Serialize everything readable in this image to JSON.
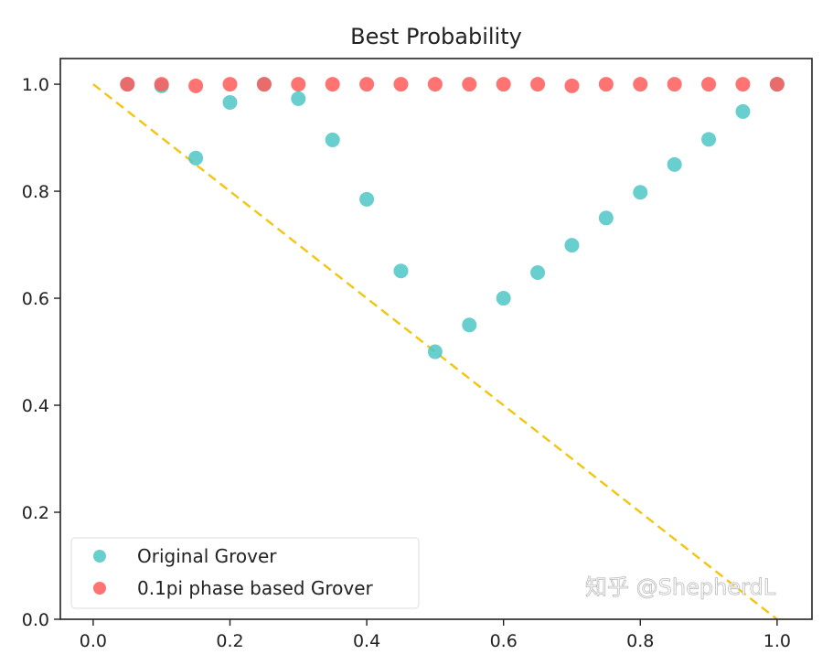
{
  "chart_data": {
    "type": "scatter",
    "title": "Best Probability",
    "xlabel": "",
    "ylabel": "",
    "xlim": [
      -0.048,
      1.051
    ],
    "ylim": [
      0.0,
      1.048
    ],
    "xticks": [
      "0.0",
      "0.2",
      "0.4",
      "0.6",
      "0.8",
      "1.0"
    ],
    "yticks": [
      "0.0",
      "0.2",
      "0.4",
      "0.6",
      "0.8",
      "1.0"
    ],
    "grid": false,
    "legend_placement": "lower-left",
    "series": [
      {
        "name": "Original Grover",
        "color": "#4ec5c5",
        "x": [
          0.05,
          0.1,
          0.15,
          0.2,
          0.25,
          0.3,
          0.35,
          0.4,
          0.45,
          0.5,
          0.55,
          0.6,
          0.65,
          0.7,
          0.75,
          0.8,
          0.85,
          0.9,
          0.95,
          1.0
        ],
        "y": [
          1.0,
          0.997,
          0.862,
          0.966,
          1.0,
          0.973,
          0.896,
          0.785,
          0.651,
          0.5,
          0.55,
          0.6,
          0.648,
          0.699,
          0.75,
          0.798,
          0.85,
          0.897,
          0.949,
          1.0
        ]
      },
      {
        "name": "0.1pi phase based Grover",
        "color": "#ff5a5a",
        "x": [
          0.05,
          0.1,
          0.15,
          0.2,
          0.25,
          0.3,
          0.35,
          0.4,
          0.45,
          0.5,
          0.55,
          0.6,
          0.65,
          0.7,
          0.75,
          0.8,
          0.85,
          0.9,
          0.95,
          1.0
        ],
        "y": [
          1.0,
          1.0,
          0.997,
          1.0,
          1.0,
          1.0,
          1.0,
          1.0,
          1.0,
          1.0,
          1.0,
          1.0,
          1.0,
          0.997,
          1.0,
          1.0,
          1.0,
          1.0,
          1.0,
          1.0
        ]
      }
    ],
    "reference_line": {
      "style": "dashed",
      "color": "#f2c511",
      "x": [
        0.0,
        1.0
      ],
      "y": [
        1.0,
        0.0
      ]
    }
  },
  "watermark": "知乎 @ShepherdL"
}
